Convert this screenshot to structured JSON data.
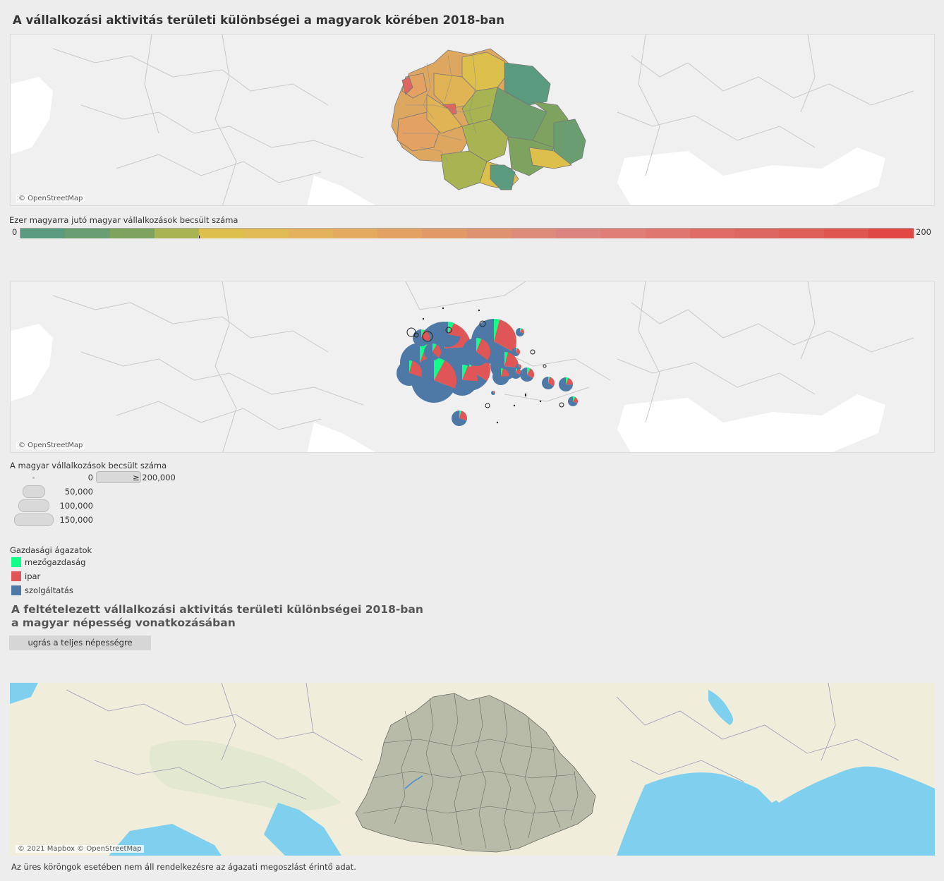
{
  "title": "A vállalkozási aktivitás területi különbségei a magyarok körében 2018-ban",
  "map1": {
    "credit": "© OpenStreetMap"
  },
  "color_legend": {
    "title": "Ezer magyarra jutó magyar vállalkozások becsült száma",
    "min_label": "0",
    "max_label": "200",
    "range": [
      0,
      200
    ],
    "marker_value": 40,
    "colors": [
      "#5a9a7e",
      "#6a9e70",
      "#7ea35e",
      "#a8b451",
      "#dcc04b",
      "#e0bb55",
      "#e3b25c",
      "#e4aa60",
      "#e3a262",
      "#e19a66",
      "#df9270",
      "#dd8b7b",
      "#dc8580",
      "#de7e77",
      "#df7670",
      "#df6d66",
      "#de6660",
      "#de5e58",
      "#df5550",
      "#e04844"
    ]
  },
  "map2": {
    "credit": "© OpenStreetMap"
  },
  "size_legend": {
    "title": "A magyar vállalkozások becsült száma",
    "items": [
      {
        "label": "0",
        "value": 0
      },
      {
        "label": "50,000",
        "value": 50000
      },
      {
        "label": "100,000",
        "value": 100000
      },
      {
        "label": "150,000",
        "value": 150000
      },
      {
        "label": "≥ 200,000",
        "value": 200000
      }
    ]
  },
  "sector_legend": {
    "title": "Gazdasági ágazatok",
    "items": [
      {
        "label": "mezőgazdaság",
        "color": "#11ff88"
      },
      {
        "label": "ipar",
        "color": "#e05555"
      },
      {
        "label": "szolgáltatás",
        "color": "#4e79a7"
      }
    ]
  },
  "section2": {
    "title_line1": "A feltételezett vállalkozási aktivitás területi különbségei 2018-ban",
    "title_line2": "a magyar népesség vonatkozásában",
    "button_label": "ugrás a teljes népességre"
  },
  "map3": {
    "credit": "© 2021 Mapbox © OpenStreetMap"
  },
  "footnote": "Az üres köröngok esetében nem áll rendelkezésre az ágazati megoszlást érintő adat."
}
